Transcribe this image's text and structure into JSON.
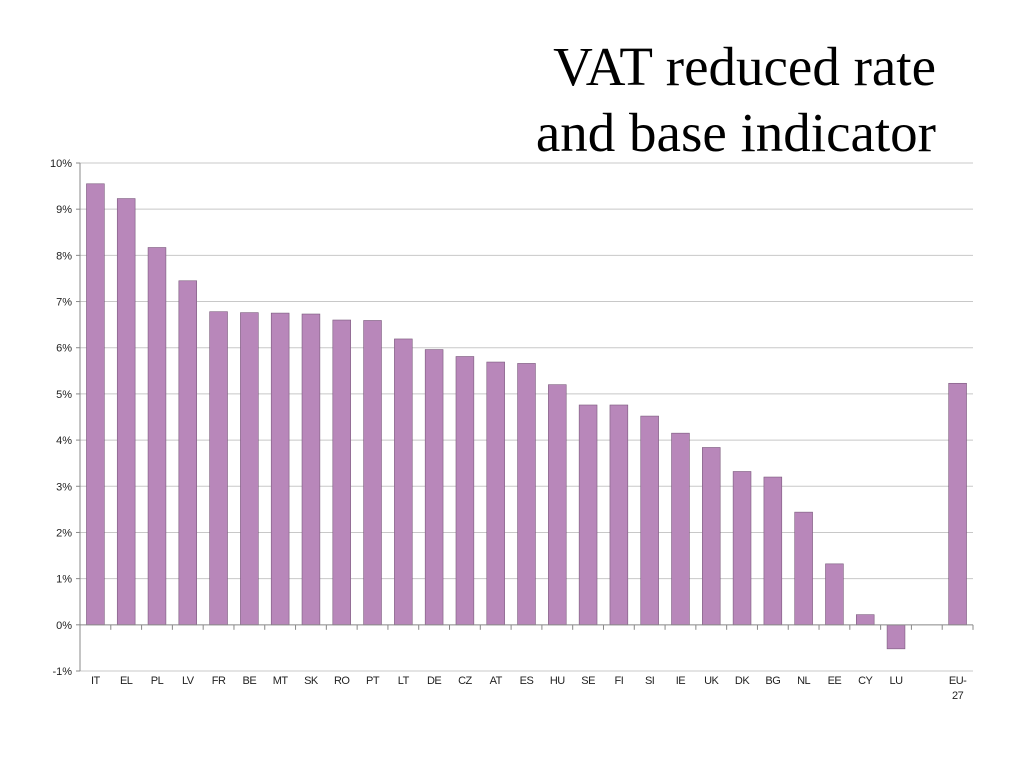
{
  "chart_data": {
    "type": "bar",
    "title_lines": [
      "VAT reduced rate",
      "and base indicator"
    ],
    "categories": [
      "IT",
      "EL",
      "PL",
      "LV",
      "FR",
      "BE",
      "MT",
      "SK",
      "RO",
      "PT",
      "LT",
      "DE",
      "CZ",
      "AT",
      "ES",
      "HU",
      "SE",
      "FI",
      "SI",
      "IE",
      "UK",
      "DK",
      "BG",
      "NL",
      "EE",
      "CY",
      "LU",
      "",
      "EU-27"
    ],
    "values": [
      9.55,
      9.23,
      8.17,
      7.45,
      6.78,
      6.76,
      6.75,
      6.73,
      6.6,
      6.59,
      6.19,
      5.96,
      5.81,
      5.69,
      5.66,
      5.2,
      4.76,
      4.76,
      4.52,
      4.15,
      3.84,
      3.32,
      3.2,
      2.44,
      1.32,
      0.22,
      -0.52,
      null,
      5.23
    ],
    "ylim": [
      -1,
      10
    ],
    "yticks": [
      "-1%",
      "0%",
      "1%",
      "2%",
      "3%",
      "4%",
      "5%",
      "6%",
      "7%",
      "8%",
      "9%",
      "10%"
    ],
    "grid": true,
    "bar_color": "#b887ba",
    "bar_edge_color": "#7a5a7c",
    "grid_color": "#c8c8c8"
  }
}
